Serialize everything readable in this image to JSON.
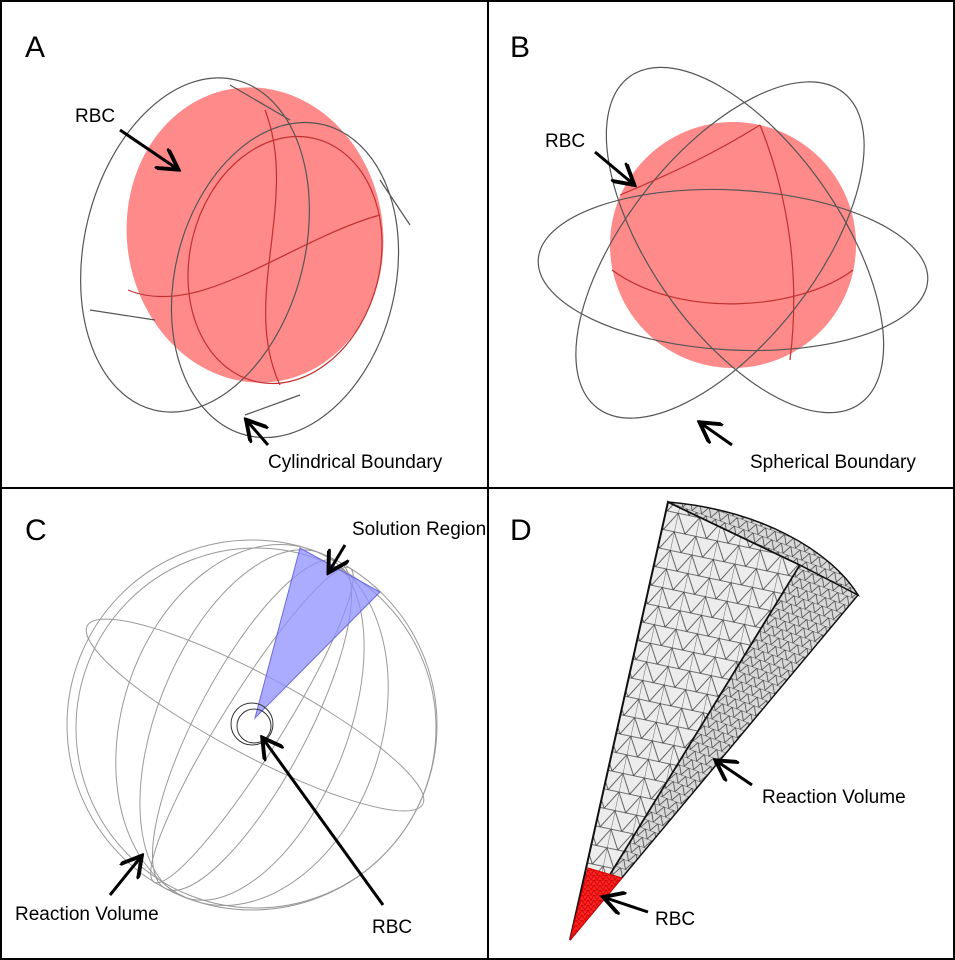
{
  "panels": [
    {
      "label": "A",
      "annotations": [
        "RBC",
        "Cylindrical Boundary"
      ]
    },
    {
      "label": "B",
      "annotations": [
        "RBC",
        "Spherical Boundary"
      ]
    },
    {
      "label": "C",
      "annotations": [
        "Solution Region",
        "RBC",
        "Reaction Volume"
      ]
    },
    {
      "label": "D",
      "annotations": [
        "Reaction Volume",
        "RBC"
      ]
    }
  ]
}
